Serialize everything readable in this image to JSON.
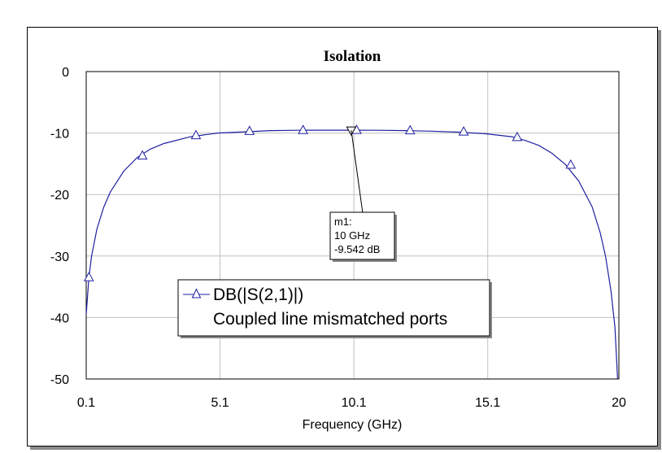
{
  "chart_data": {
    "type": "line",
    "title": "Isolation",
    "xlabel": "Frequency (GHz)",
    "ylabel": "",
    "xlim": [
      0.1,
      20
    ],
    "ylim": [
      -50,
      0
    ],
    "x_ticks": [
      0.1,
      5.1,
      10.1,
      15.1,
      20
    ],
    "x_tick_labels": [
      "0.1",
      "5.1",
      "10.1",
      "15.1",
      "20"
    ],
    "y_ticks": [
      0,
      -10,
      -20,
      -30,
      -40,
      -50
    ],
    "y_tick_labels": [
      "0",
      "-10",
      "-20",
      "-30",
      "-40",
      "-50"
    ],
    "grid": true,
    "legend_position": "bottom-left",
    "colors": {
      "series": "#1f1fa0",
      "grid": "#c0c0c0",
      "frame": "#000000"
    },
    "series": [
      {
        "name": "DB(|S(2,1)|)",
        "subtitle": "Coupled line mismatched ports",
        "marker": "triangle-open",
        "x": [
          0.1,
          0.2,
          0.3,
          0.5,
          0.75,
          1.0,
          1.5,
          2.0,
          2.5,
          3.0,
          4.0,
          5.0,
          6.0,
          7.0,
          8.0,
          9.0,
          10.0,
          11.0,
          12.0,
          13.0,
          14.0,
          15.0,
          16.0,
          16.5,
          17.0,
          17.5,
          18.0,
          18.5,
          19.0,
          19.3,
          19.5,
          19.7,
          19.85,
          19.95
        ],
        "y": [
          -39.5,
          -33.5,
          -30.0,
          -25.6,
          -22.1,
          -19.6,
          -16.2,
          -14.0,
          -12.6,
          -11.7,
          -10.6,
          -10.0,
          -9.8,
          -9.6,
          -9.55,
          -9.54,
          -9.542,
          -9.55,
          -9.6,
          -9.7,
          -9.85,
          -10.1,
          -10.6,
          -11.2,
          -12.0,
          -13.3,
          -15.1,
          -17.8,
          -22.0,
          -26.2,
          -30.0,
          -35.5,
          -41.5,
          -50.0
        ],
        "marker_x": [
          0.2,
          2.2,
          4.2,
          6.2,
          8.2,
          10.2,
          12.2,
          14.2,
          16.2,
          18.2
        ],
        "marker_y": [
          -33.5,
          -13.7,
          -10.4,
          -9.7,
          -9.55,
          -9.54,
          -9.6,
          -9.8,
          -10.7,
          -15.2
        ]
      }
    ],
    "markers": [
      {
        "name": "m1",
        "x_text": "10 GHz",
        "y_text": "-9.542 dB",
        "x": 10,
        "y": -9.542
      }
    ]
  }
}
